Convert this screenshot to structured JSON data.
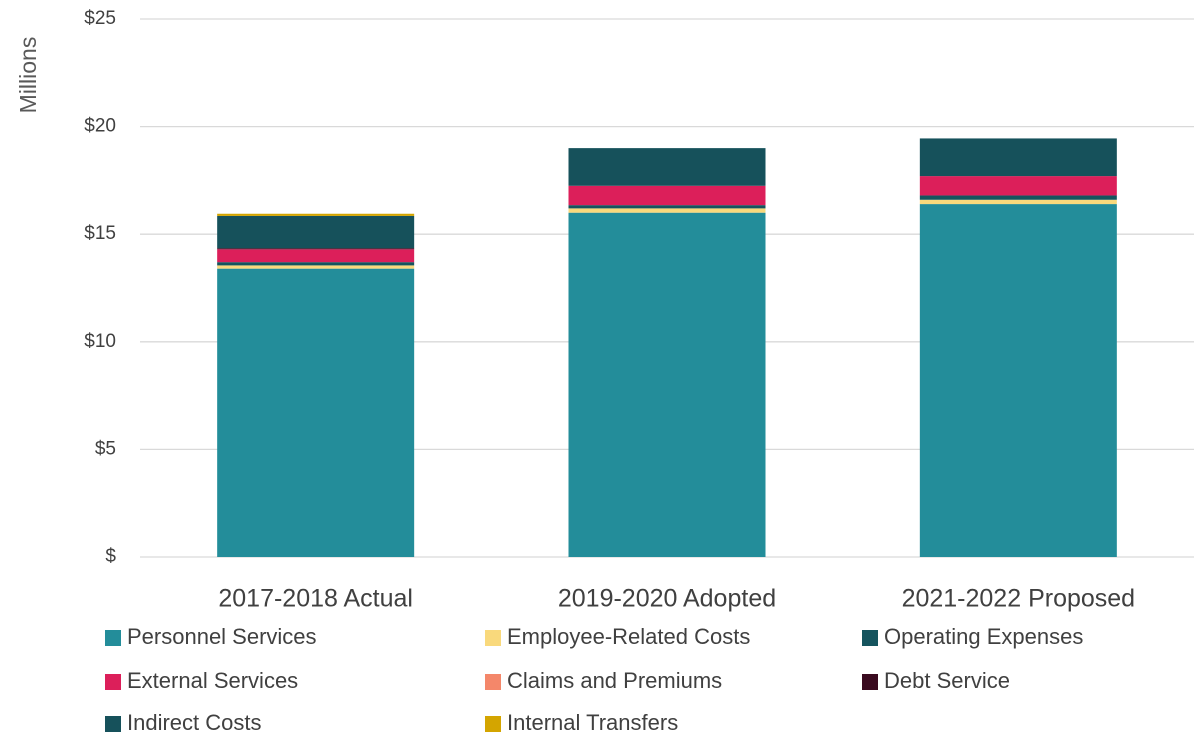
{
  "chart_data": {
    "type": "bar",
    "stacked": true,
    "y_axis_label": "Millions",
    "categories": [
      "2017-2018 Actual",
      "2019-2020 Adopted",
      "2021-2022 Proposed"
    ],
    "series": [
      {
        "name": "Personnel Services",
        "color": "#238d9a",
        "values": [
          13.4,
          16.0,
          16.4
        ]
      },
      {
        "name": "Employee-Related Costs",
        "color": "#f9d97c",
        "values": [
          0.15,
          0.2,
          0.2
        ]
      },
      {
        "name": "Operating Expenses",
        "color": "#15545e",
        "values": [
          0.15,
          0.15,
          0.2
        ]
      },
      {
        "name": "External Services",
        "color": "#dc1f5a",
        "values": [
          0.6,
          0.9,
          0.9
        ]
      },
      {
        "name": "Claims and Premiums",
        "color": "#f4876a",
        "values": [
          0,
          0,
          0
        ]
      },
      {
        "name": "Debt Service",
        "color": "#3a0a1f",
        "values": [
          0.05,
          0,
          0
        ]
      },
      {
        "name": "Indirect Costs",
        "color": "#16515b",
        "values": [
          1.5,
          1.75,
          1.75
        ]
      },
      {
        "name": "Internal Transfers",
        "color": "#d4a500",
        "values": [
          0.1,
          0,
          0
        ]
      }
    ],
    "ylim": [
      0,
      25
    ],
    "yticks": [
      {
        "value": 0,
        "label": "$"
      },
      {
        "value": 5,
        "label": "$5"
      },
      {
        "value": 10,
        "label": "$10"
      },
      {
        "value": 15,
        "label": "$15"
      },
      {
        "value": 20,
        "label": "$20"
      },
      {
        "value": 25,
        "label": "$25"
      }
    ],
    "grid": true
  }
}
